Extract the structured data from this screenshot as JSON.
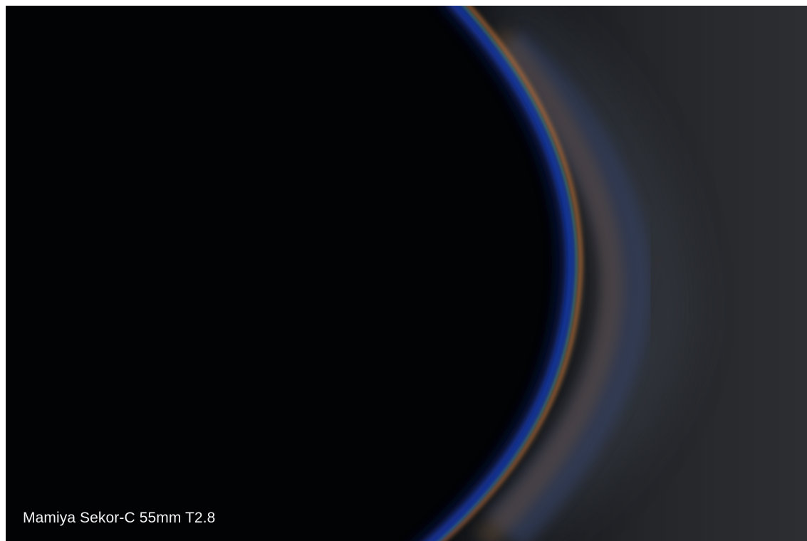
{
  "caption": {
    "text": "Mamiya Sekor-C 55mm T2.8"
  },
  "colors": {
    "background": "#ffffff",
    "shadow": "#020304",
    "blue_rim": "#1a3fb0",
    "fringe_orange": "#c87a3a",
    "fringe_green": "#4e9a5a",
    "haze": "#2a2c30"
  }
}
